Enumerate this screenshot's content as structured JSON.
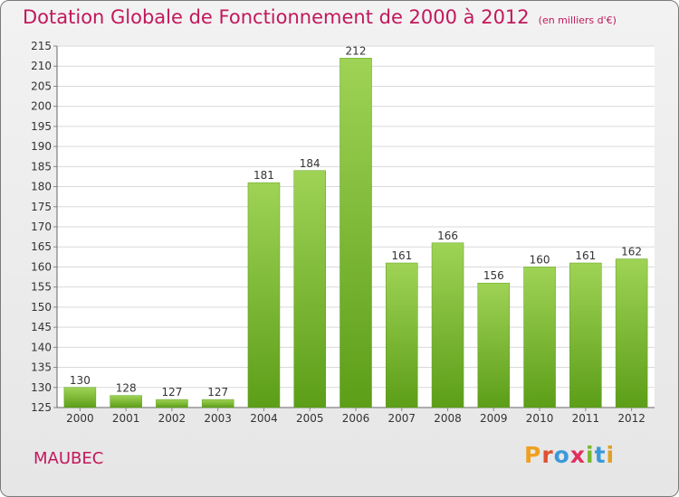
{
  "header": {
    "title": "Dotation Globale de Fonctionnement de 2000 à 2012",
    "unit_note": "(en milliers d'€)"
  },
  "footer": {
    "commune": "MAUBEC",
    "brand": "Proxiti",
    "brand_colors": [
      "#f0a020",
      "#e05030",
      "#3a9ad9",
      "#e03060",
      "#7ab82e",
      "#3a9ad9",
      "#e0a020"
    ]
  },
  "colors": {
    "title": "#c2185b",
    "bar_light": "#9fd356",
    "bar_dark": "#5c9e18",
    "grid": "#d9d9d9"
  },
  "chart_data": {
    "type": "bar",
    "categories": [
      "2000",
      "2001",
      "2002",
      "2003",
      "2004",
      "2005",
      "2006",
      "2007",
      "2008",
      "2009",
      "2010",
      "2011",
      "2012"
    ],
    "values": [
      130,
      128,
      127,
      127,
      181,
      184,
      212,
      161,
      166,
      156,
      160,
      161,
      162
    ],
    "ylim": [
      125,
      215
    ],
    "yticks": [
      125,
      130,
      135,
      140,
      145,
      150,
      155,
      160,
      165,
      170,
      175,
      180,
      185,
      190,
      195,
      200,
      205,
      210,
      215
    ],
    "grid": true,
    "legend": "none"
  }
}
